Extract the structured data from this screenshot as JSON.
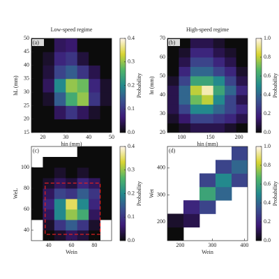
{
  "chart_data": [
    {
      "type": "heatmap",
      "title": "Low-speed regime",
      "panel_label": "(a)",
      "xlabel": "hin (mm)",
      "ylabel": "hL (mm)",
      "xlim": [
        15,
        50
      ],
      "ylim": [
        15,
        50
      ],
      "xticks": [
        20,
        30,
        40,
        50
      ],
      "yticks": [
        15,
        20,
        25,
        30,
        35,
        40,
        45,
        50
      ],
      "x": [
        17.5,
        22.5,
        27.5,
        32.5,
        37.5,
        42.5,
        47.5
      ],
      "y": [
        17.5,
        22.5,
        27.5,
        32.5,
        37.5,
        42.5,
        47.5
      ],
      "z": [
        [
          0,
          0,
          0,
          0,
          0,
          0,
          0
        ],
        [
          0,
          0,
          0.05,
          0.1,
          0.05,
          0.02,
          0
        ],
        [
          0,
          0.02,
          0.15,
          0.25,
          0.3,
          0.1,
          0.02
        ],
        [
          0,
          0.05,
          0.2,
          0.3,
          0.28,
          0.08,
          0.02
        ],
        [
          0,
          0.03,
          0.12,
          0.15,
          0.1,
          0.04,
          0
        ],
        [
          0,
          0.02,
          0.08,
          0.1,
          0.03,
          0,
          0
        ],
        [
          0,
          0,
          0.05,
          0.06,
          0,
          0,
          0
        ]
      ],
      "colorbar": {
        "label": "Probability",
        "lim": [
          0,
          0.4
        ],
        "ticks": [
          {
            "value": 0,
            "label": "0.0"
          },
          0.1,
          0.2,
          0.3,
          0.4
        ]
      },
      "colormap": [
        "#0c0c0c",
        "#3d1a78",
        "#3a4f8e",
        "#23898d",
        "#4fb569",
        "#d9d530",
        "#fff5ea"
      ]
    },
    {
      "type": "heatmap",
      "title": "High-speed regime",
      "panel_label": "(b)",
      "xlabel": "hin (mm)",
      "ylabel": "ht (mm)",
      "xlim": [
        75,
        215
      ],
      "ylim": [
        20,
        70
      ],
      "xticks": [
        100,
        150,
        200
      ],
      "yticks": [
        20,
        30,
        40,
        50,
        60,
        70
      ],
      "x": [
        85,
        105,
        125,
        145,
        165,
        185,
        205
      ],
      "y": [
        22.5,
        27.5,
        32.5,
        37.5,
        42.5,
        47.5,
        52.5,
        57.5,
        62.5,
        67.5
      ],
      "z": [
        [
          0,
          0.05,
          0.1,
          0.1,
          0.1,
          0.05,
          0
        ],
        [
          0.05,
          0.15,
          0.3,
          0.3,
          0.25,
          0.2,
          0.1
        ],
        [
          0.1,
          0.3,
          0.5,
          0.5,
          0.4,
          0.3,
          0.2
        ],
        [
          0.1,
          0.4,
          0.7,
          0.8,
          0.5,
          0.3,
          0.1
        ],
        [
          0.1,
          0.4,
          0.8,
          0.95,
          0.6,
          0.4,
          0.2
        ],
        [
          0.05,
          0.3,
          0.6,
          0.6,
          0.5,
          0.3,
          0.1
        ],
        [
          0,
          0.2,
          0.4,
          0.4,
          0.3,
          0.2,
          0.05
        ],
        [
          0,
          0.1,
          0.3,
          0.3,
          0.2,
          0.1,
          0
        ],
        [
          0,
          0.05,
          0.2,
          0.2,
          0.1,
          0.05,
          0
        ],
        [
          0,
          0,
          0.1,
          0.1,
          0.05,
          0,
          0
        ]
      ],
      "colorbar": {
        "label": "Probability",
        "lim": [
          0,
          1
        ],
        "ticks": [
          {
            "value": 0,
            "label": "0.0"
          },
          0.2,
          0.4,
          0.6,
          0.8,
          {
            "value": 1,
            "label": "1.0"
          }
        ]
      },
      "colormap": [
        "#0c0c0c",
        "#3d1a78",
        "#3a4f8e",
        "#23898d",
        "#4fb569",
        "#d9d530",
        "#fff5ea"
      ]
    },
    {
      "type": "heatmap",
      "panel_label": "(c)",
      "xlabel": "Wein",
      "ylabel": "WeL",
      "xlim": [
        25,
        95
      ],
      "ylim": [
        30,
        120
      ],
      "xticks": [
        40,
        60,
        80
      ],
      "yticks": [
        40,
        60,
        80,
        100
      ],
      "x": [
        30,
        40,
        50,
        60,
        70,
        80,
        90
      ],
      "y": [
        35,
        45,
        55,
        65,
        75,
        85,
        95,
        105,
        115
      ],
      "z": [
        [
          null,
          0,
          0.02,
          0.05,
          0.03,
          0,
          null
        ],
        [
          null,
          0.02,
          0.1,
          0.15,
          0.1,
          0.02,
          null
        ],
        [
          0,
          0.05,
          0.2,
          0.3,
          0.25,
          0.05,
          0
        ],
        [
          0,
          0.08,
          0.2,
          0.35,
          0.2,
          0.08,
          0
        ],
        [
          0,
          0.05,
          0.12,
          0.1,
          0.15,
          0.1,
          0
        ],
        [
          0,
          0.02,
          0.05,
          0.03,
          0.08,
          0.05,
          0
        ],
        [
          0,
          0,
          0.02,
          0,
          0.02,
          0,
          0
        ],
        [
          null,
          0,
          0,
          0,
          0,
          0,
          0
        ],
        [
          null,
          null,
          null,
          null,
          0,
          0,
          0
        ]
      ],
      "highlight": {
        "x": [
          37,
          85
        ],
        "y": [
          36,
          85
        ],
        "color": "#e02020"
      },
      "colorbar": {
        "label": "Probability",
        "lim": [
          0,
          0.4
        ],
        "ticks": [
          {
            "value": 0,
            "label": "0.0"
          },
          0.1,
          0.2,
          0.3,
          0.4
        ]
      },
      "colormap": [
        "#0c0c0c",
        "#3d1a78",
        "#3a4f8e",
        "#23898d",
        "#4fb569",
        "#d9d530",
        "#fff5ea"
      ]
    },
    {
      "type": "heatmap",
      "panel_label": "(d)",
      "xlabel": "Wein",
      "ylabel": "Wet",
      "xlim": [
        160,
        410
      ],
      "ylim": [
        130,
        480
      ],
      "xticks": [
        200,
        300,
        400
      ],
      "yticks": [
        200,
        300,
        400
      ],
      "x": [
        185,
        235,
        285,
        335,
        385
      ],
      "y": [
        155,
        205,
        255,
        305,
        355,
        405,
        455
      ],
      "z": [
        [
          0,
          null,
          null,
          null,
          null
        ],
        [
          0.05,
          0.1,
          null,
          null,
          null
        ],
        [
          null,
          0.2,
          0.3,
          null,
          null
        ],
        [
          null,
          null,
          0.6,
          0.4,
          null
        ],
        [
          null,
          null,
          0.3,
          0.5,
          0.3
        ],
        [
          null,
          null,
          null,
          0.3,
          0.4
        ],
        [
          null,
          null,
          null,
          null,
          0.3
        ]
      ],
      "colorbar": {
        "label": "Probability",
        "lim": [
          0,
          1
        ],
        "ticks": [
          {
            "value": 0,
            "label": "0.0"
          },
          0.2,
          0.4,
          0.6,
          0.8,
          {
            "value": 1,
            "label": "1.0"
          }
        ]
      },
      "colormap": [
        "#0c0c0c",
        "#3d1a78",
        "#3a4f8e",
        "#23898d",
        "#4fb569",
        "#d9d530",
        "#fff5ea"
      ]
    }
  ]
}
